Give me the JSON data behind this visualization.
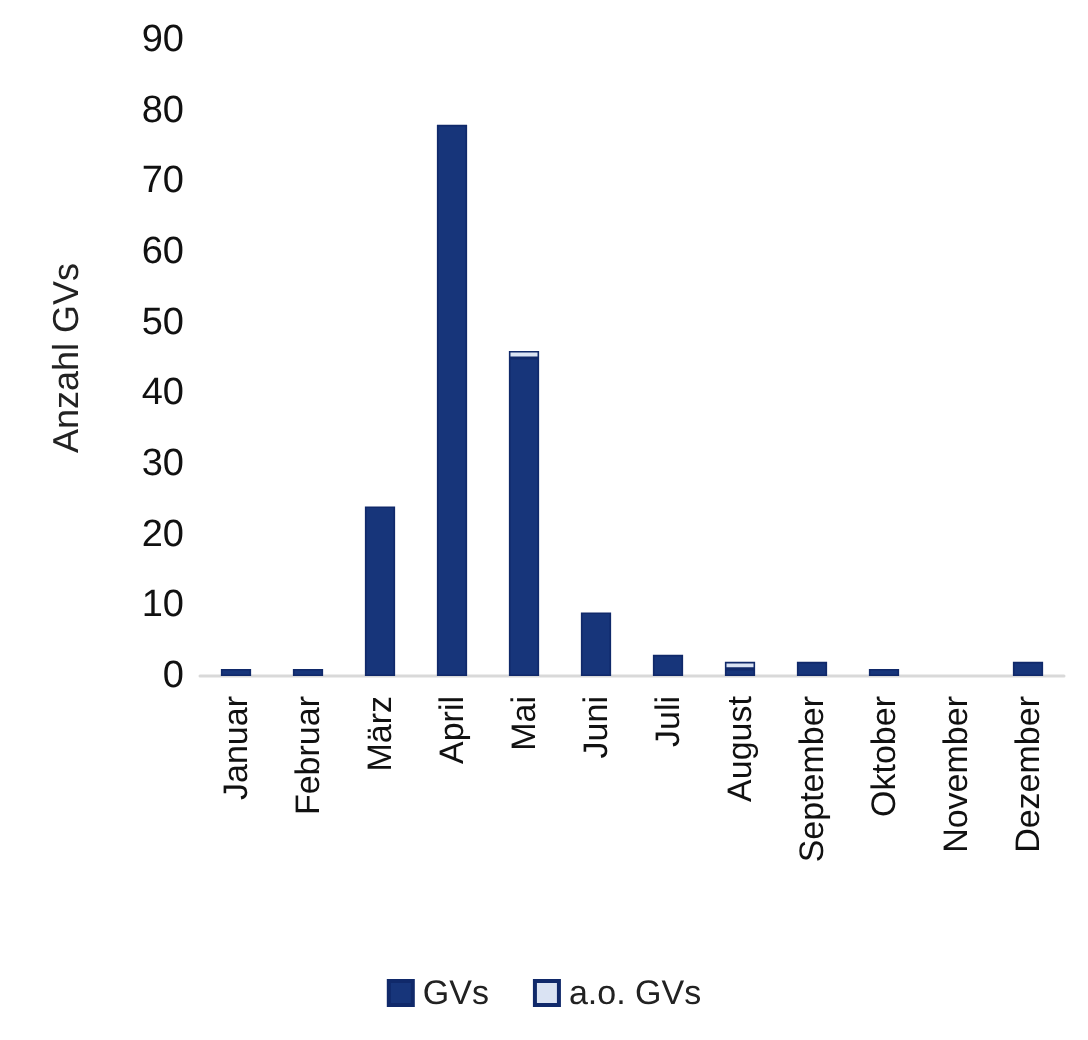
{
  "chart_data": {
    "type": "bar",
    "ylabel": "Anzahl GVs",
    "categories": [
      "Januar",
      "Februar",
      "März",
      "April",
      "Mai",
      "Juni",
      "Juli",
      "August",
      "September",
      "Oktober",
      "November",
      "Dezember"
    ],
    "stacked": true,
    "grid": false,
    "legend": "bottom",
    "ylim": [
      0,
      90
    ],
    "yticks": [
      0,
      10,
      20,
      30,
      40,
      50,
      60,
      70,
      80,
      90
    ],
    "series": [
      {
        "name": "GVs",
        "color": "#17357a",
        "values": [
          1,
          1,
          24,
          78,
          45,
          9,
          3,
          1,
          2,
          1,
          0,
          2
        ]
      },
      {
        "name": "a.o. GVs",
        "color": "#dae3f3",
        "values": [
          0,
          0,
          0,
          0,
          1,
          0,
          0,
          1,
          0,
          0,
          0,
          0
        ]
      }
    ]
  }
}
